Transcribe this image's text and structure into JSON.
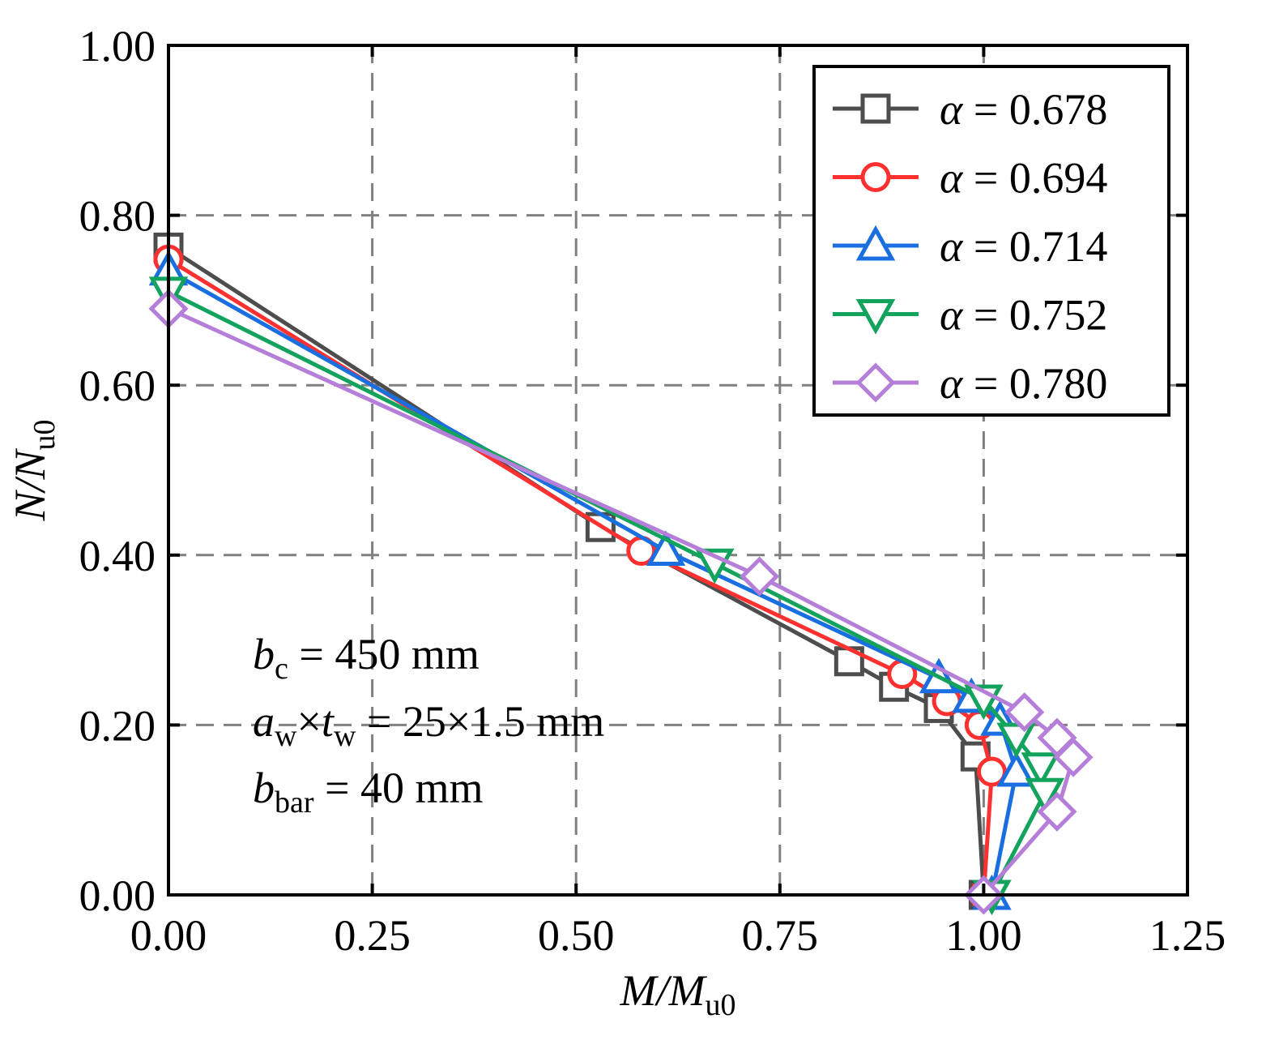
{
  "chart_data": {
    "type": "line",
    "title": "",
    "xlabel": {
      "main": "M/M",
      "sub": "u0"
    },
    "ylabel": {
      "main": "N/N",
      "sub": "u0"
    },
    "xlim": [
      0,
      1.25
    ],
    "ylim": [
      0,
      1.0
    ],
    "x_ticks": [
      0,
      0.25,
      0.5,
      0.75,
      1.0,
      1.25
    ],
    "y_ticks": [
      0,
      0.2,
      0.4,
      0.6,
      0.8,
      1.0
    ],
    "x_tick_labels": [
      "0.00",
      "0.25",
      "0.50",
      "0.75",
      "1.00",
      "1.25"
    ],
    "y_tick_labels": [
      "0.00",
      "0.20",
      "0.40",
      "0.60",
      "0.80",
      "1.00"
    ],
    "grid": true,
    "legend_position": "top-right",
    "series": [
      {
        "name": "α = 0.678",
        "symbol": "α",
        "value_text": "= 0.678",
        "marker": "square",
        "color": "#4d4d4d",
        "x": [
          0.0,
          0.53,
          0.835,
          0.89,
          0.945,
          0.99,
          1.0
        ],
        "y": [
          0.762,
          0.433,
          0.275,
          0.245,
          0.22,
          0.163,
          0.0
        ]
      },
      {
        "name": "α = 0.694",
        "symbol": "α",
        "value_text": "= 0.694",
        "marker": "circle",
        "color": "#ff3030",
        "x": [
          0.0,
          0.58,
          0.9,
          0.955,
          0.995,
          1.01,
          1.0
        ],
        "y": [
          0.748,
          0.405,
          0.26,
          0.228,
          0.2,
          0.145,
          0.0
        ]
      },
      {
        "name": "α = 0.714",
        "symbol": "α",
        "value_text": "= 0.714",
        "marker": "triangle-up",
        "color": "#1a6fe0",
        "x": [
          0.0,
          0.61,
          0.945,
          0.985,
          1.02,
          1.04,
          1.01
        ],
        "y": [
          0.735,
          0.405,
          0.255,
          0.232,
          0.205,
          0.145,
          0.0
        ]
      },
      {
        "name": "α = 0.752",
        "symbol": "α",
        "value_text": "= 0.752",
        "marker": "triangle-down",
        "color": "#13a35c",
        "x": [
          0.0,
          0.67,
          1.0,
          1.04,
          1.07,
          1.075,
          1.01
        ],
        "y": [
          0.71,
          0.39,
          0.23,
          0.185,
          0.15,
          0.12,
          0.0
        ]
      },
      {
        "name": "α = 0.780",
        "symbol": "α",
        "value_text": "= 0.780",
        "marker": "diamond",
        "color": "#b57ed9",
        "x": [
          0.0,
          0.725,
          1.05,
          1.09,
          1.11,
          1.09,
          1.0
        ],
        "y": [
          0.69,
          0.375,
          0.215,
          0.185,
          0.162,
          0.098,
          0.0
        ]
      }
    ],
    "annotations": [
      {
        "id": "bc",
        "base": "b",
        "sub": "c",
        "rest": " = 450 mm"
      },
      {
        "id": "awtw",
        "base1": "a",
        "sub1": "w",
        "times": "×",
        "base2": "t",
        "sub2": "w",
        "rest": " = 25×1.5 mm"
      },
      {
        "id": "bbar",
        "base": "b",
        "sub": "bar",
        "rest": " = 40 mm"
      }
    ]
  }
}
